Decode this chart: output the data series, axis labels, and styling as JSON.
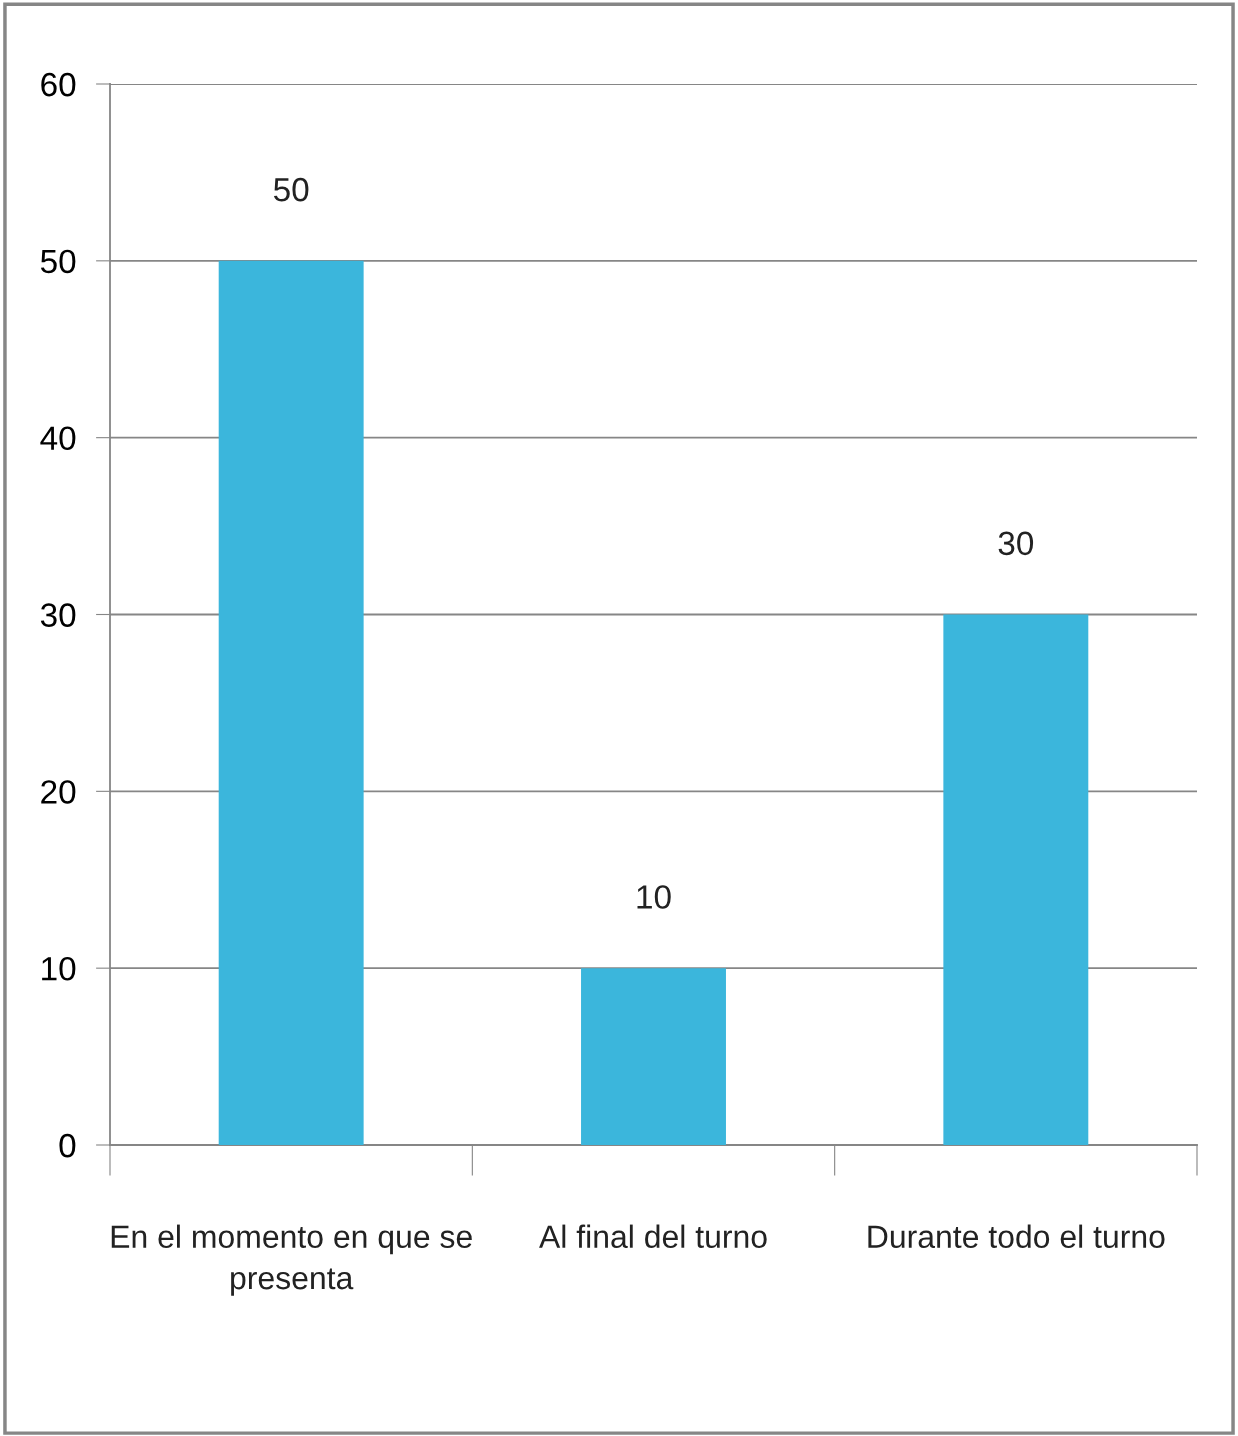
{
  "chart_data": {
    "type": "bar",
    "categories": [
      "En el momento en que se presenta",
      "Al final del turno",
      "Durante todo el turno"
    ],
    "values": [
      50,
      10,
      30
    ],
    "color": "#3bb6dc",
    "ylim": [
      0,
      60
    ],
    "yticks": [
      0,
      10,
      20,
      30,
      40,
      50,
      60
    ],
    "grid": "y",
    "data_labels": true,
    "legend": false
  }
}
